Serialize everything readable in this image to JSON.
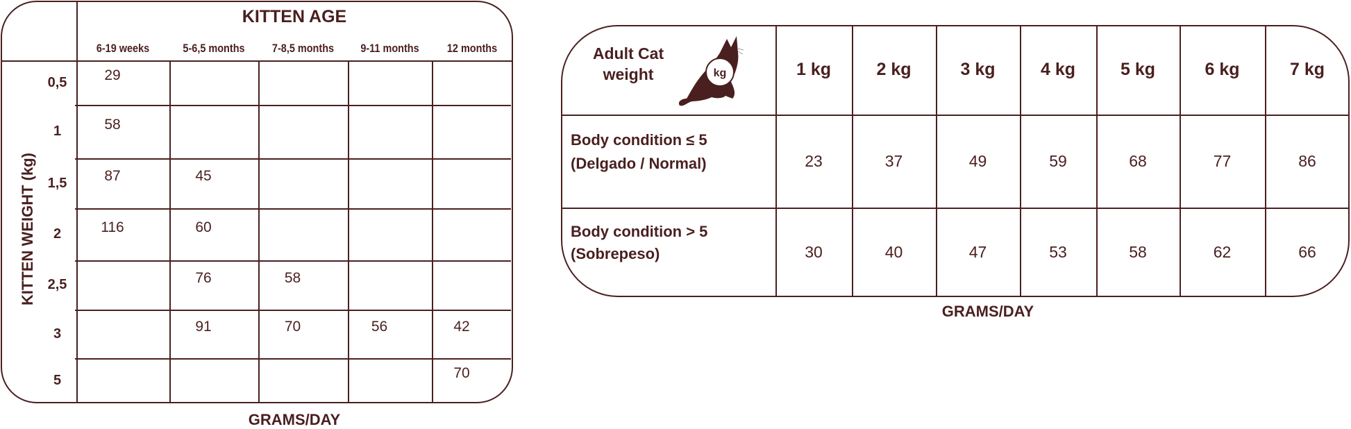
{
  "kitten_table": {
    "title": "KITTEN AGE",
    "row_axis_label": "KITTEN WEIGHT (kg)",
    "columns": [
      "6-19 weeks",
      "5-6,5 months",
      "7-8,5 months",
      "9-11 months",
      "12 months"
    ],
    "rows": [
      {
        "weight": "0,5",
        "values": [
          "29",
          "",
          "",
          "",
          ""
        ]
      },
      {
        "weight": "1",
        "values": [
          "58",
          "",
          "",
          "",
          ""
        ]
      },
      {
        "weight": "1,5",
        "values": [
          "87",
          "45",
          "",
          "",
          ""
        ]
      },
      {
        "weight": "2",
        "values": [
          "116",
          "60",
          "",
          "",
          ""
        ]
      },
      {
        "weight": "2,5",
        "values": [
          "",
          "76",
          "58",
          "",
          ""
        ]
      },
      {
        "weight": "3",
        "values": [
          "",
          "91",
          "70",
          "56",
          "42"
        ]
      },
      {
        "weight": "5",
        "values": [
          "",
          "",
          "",
          "",
          "70"
        ]
      }
    ],
    "footer": "GRAMS/DAY"
  },
  "adult_table": {
    "header_label_line1": "Adult Cat",
    "header_label_line2": "weight",
    "icon": "cat-silhouette-icon",
    "icon_badge": "kg",
    "columns": [
      "1 kg",
      "2 kg",
      "3 kg",
      "4 kg",
      "5 kg",
      "6 kg",
      "7 kg"
    ],
    "rows": [
      {
        "label_line1": "Body condition ≤ 5",
        "label_line2": "(Delgado / Normal)",
        "values": [
          "23",
          "37",
          "49",
          "59",
          "68",
          "77",
          "86"
        ]
      },
      {
        "label_line1": "Body condition > 5",
        "label_line2": "(Sobrepeso)",
        "values": [
          "30",
          "40",
          "47",
          "53",
          "58",
          "62",
          "66"
        ]
      }
    ],
    "footer": "GRAMS/DAY"
  },
  "colors": {
    "ink": "#4a1f1f",
    "background": "#ffffff"
  }
}
